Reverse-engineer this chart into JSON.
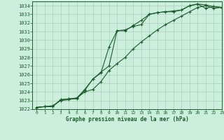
{
  "title": "Graphe pression niveau de la mer (hPa)",
  "bg_color": "#cceedd",
  "grid_color": "#aaccbb",
  "line_color": "#1a5c2a",
  "xlim": [
    -0.5,
    23
  ],
  "ylim": [
    1022,
    1034.5
  ],
  "yticks": [
    1022,
    1023,
    1024,
    1025,
    1026,
    1027,
    1028,
    1029,
    1030,
    1031,
    1032,
    1033,
    1034
  ],
  "xticks": [
    0,
    1,
    2,
    3,
    4,
    5,
    6,
    7,
    8,
    9,
    10,
    11,
    12,
    13,
    14,
    15,
    16,
    17,
    18,
    19,
    20,
    21,
    22,
    23
  ],
  "line1_x": [
    0,
    1,
    2,
    3,
    4,
    5,
    6,
    7,
    8,
    9,
    10,
    11,
    12,
    13,
    14,
    15,
    16,
    17,
    18,
    19,
    20,
    21,
    22,
    23
  ],
  "line1_y": [
    1022.2,
    1022.3,
    1022.3,
    1023.1,
    1023.2,
    1023.2,
    1024.2,
    1025.5,
    1026.2,
    1029.2,
    1031.1,
    1031.2,
    1031.6,
    1031.8,
    1033.0,
    1033.2,
    1033.3,
    1033.3,
    1033.5,
    1034.0,
    1034.2,
    1034.1,
    1033.9,
    1033.8
  ],
  "line2_x": [
    0,
    1,
    2,
    3,
    4,
    5,
    6,
    7,
    8,
    9,
    10,
    11,
    12,
    13,
    14,
    15,
    16,
    17,
    18,
    19,
    20,
    21,
    22,
    23
  ],
  "line2_y": [
    1022.2,
    1022.3,
    1022.3,
    1023.1,
    1023.2,
    1023.3,
    1024.3,
    1025.5,
    1026.3,
    1027.0,
    1031.1,
    1031.1,
    1031.7,
    1032.3,
    1033.0,
    1033.2,
    1033.3,
    1033.4,
    1033.5,
    1034.0,
    1034.2,
    1033.7,
    1033.9,
    1033.8
  ],
  "line3_x": [
    0,
    1,
    2,
    3,
    4,
    5,
    6,
    7,
    8,
    9,
    10,
    11,
    12,
    13,
    14,
    15,
    16,
    17,
    18,
    19,
    20,
    21,
    22,
    23
  ],
  "line3_y": [
    1022.2,
    1022.3,
    1022.4,
    1023.0,
    1023.1,
    1023.3,
    1024.0,
    1024.3,
    1025.2,
    1026.5,
    1027.3,
    1028.0,
    1029.0,
    1029.8,
    1030.5,
    1031.2,
    1031.8,
    1032.3,
    1032.8,
    1033.3,
    1033.8,
    1034.0,
    1033.7,
    1033.8
  ]
}
